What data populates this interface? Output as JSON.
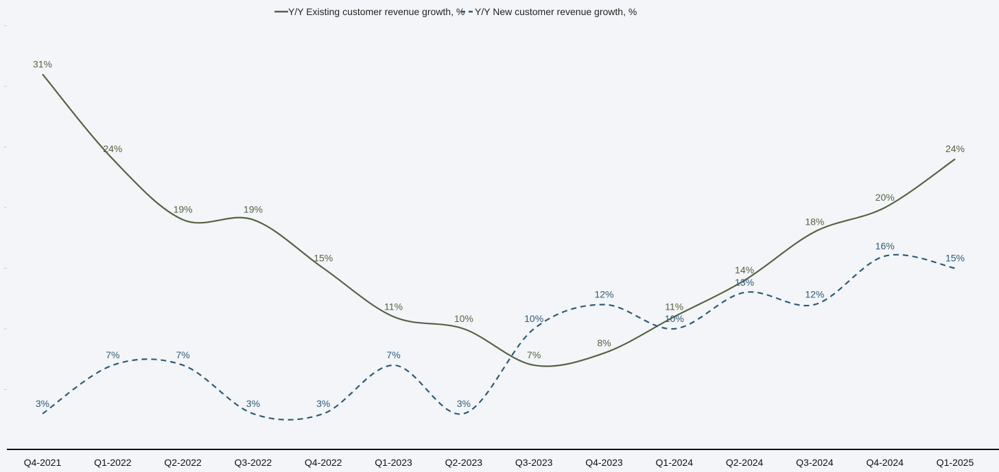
{
  "chart_data": {
    "type": "line",
    "title": "",
    "xlabel": "",
    "ylabel": "",
    "ylim": [
      0,
      35
    ],
    "grid": false,
    "legend_position": "top-center",
    "categories": [
      "Q4-2021",
      "Q1-2022",
      "Q2-2022",
      "Q3-2022",
      "Q4-2022",
      "Q1-2023",
      "Q2-2023",
      "Q3-2023",
      "Q4-2023",
      "Q1-2024",
      "Q2-2024",
      "Q3-2024",
      "Q4-2024",
      "Q1-2025"
    ],
    "series": [
      {
        "name": "Y/Y Existing customer revenue growth, %",
        "color": "#566244",
        "style": "solid",
        "values": [
          31,
          24,
          19,
          19,
          15,
          11,
          10,
          7,
          8,
          11,
          14,
          18,
          20,
          24
        ],
        "labels": [
          "31%",
          "24%",
          "19%",
          "19%",
          "15%",
          "11%",
          "10%",
          "7%",
          "8%",
          "11%",
          "14%",
          "18%",
          "20%",
          "24%"
        ]
      },
      {
        "name": "Y/Y New customer revenue growth, %",
        "color": "#2e5a78",
        "style": "dashed",
        "values": [
          3,
          7,
          7,
          3,
          3,
          7,
          3,
          10,
          12,
          10,
          13,
          12,
          16,
          15
        ],
        "labels": [
          "3%",
          "7%",
          "7%",
          "3%",
          "3%",
          "7%",
          "3%",
          "10%",
          "12%",
          "10%",
          "13%",
          "12%",
          "16%",
          "15%"
        ]
      }
    ]
  }
}
